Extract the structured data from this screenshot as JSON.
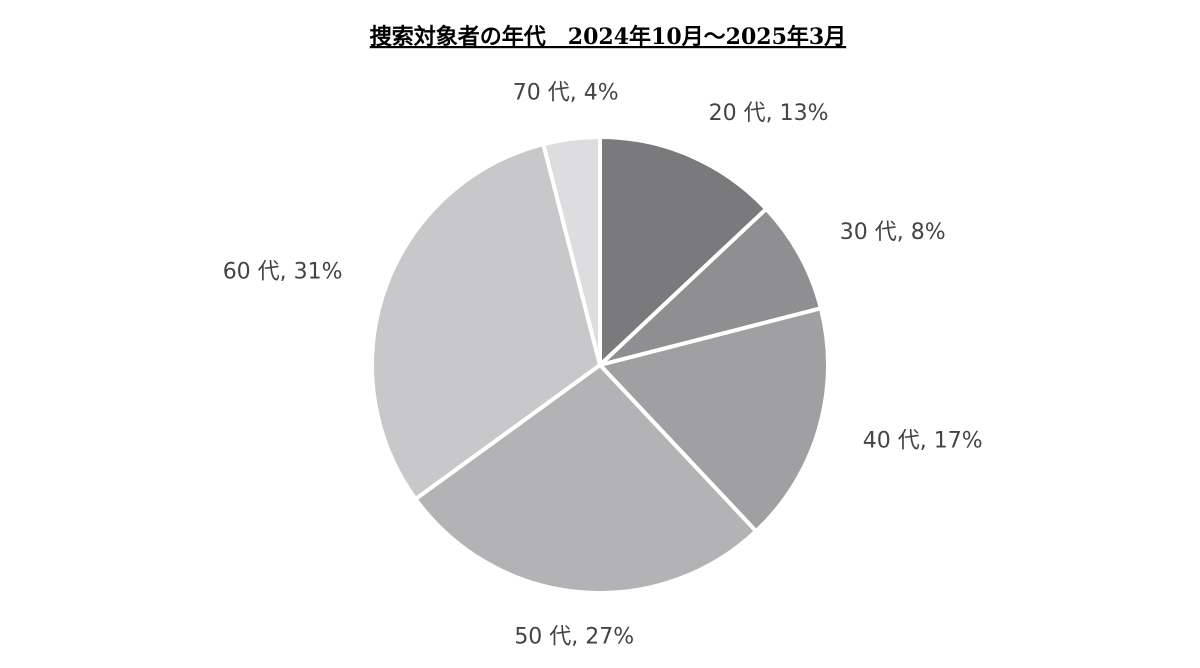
{
  "chart_data": {
    "type": "pie",
    "title": "捜索対象者の年代　2024年10月～2025年3月",
    "values": [
      13,
      8,
      17,
      27,
      31,
      4
    ],
    "value_labels": [
      "20 代, 13%",
      "30 代, 8%",
      "40 代, 17%",
      "50 代, 27%",
      "60 代, 31%",
      "70 代, 4%"
    ],
    "colors": [
      "#7a797b",
      "#8f8e90",
      "#a09fa1",
      "#b3b2b4",
      "#c8c7c9",
      "#dddcde"
    ]
  }
}
